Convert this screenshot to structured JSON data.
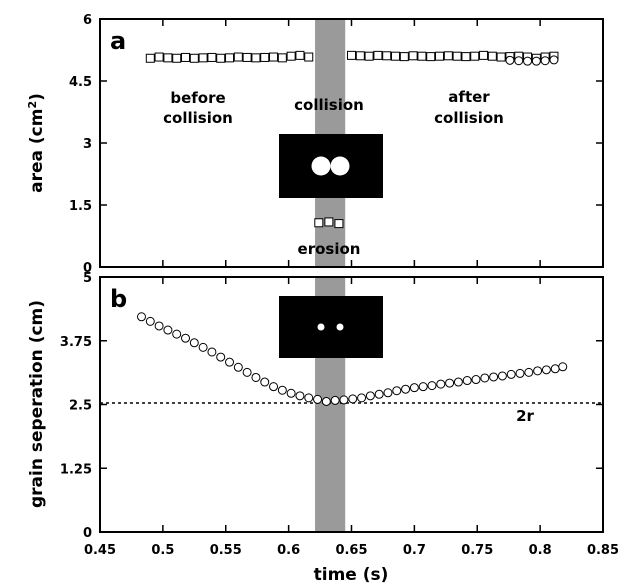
{
  "chart_data": [
    {
      "panel": "a",
      "type": "scatter",
      "ylabel_main": "area (cm",
      "ylabel_sup": "2",
      "ylabel_end": ")",
      "xlim": [
        0.45,
        0.85
      ],
      "ylim": [
        0,
        6
      ],
      "yticks": [
        "0",
        "1.5",
        "3",
        "4.5",
        "6"
      ],
      "ytick_values": [
        0,
        1.5,
        3,
        4.5,
        6
      ],
      "shaded_band": [
        0.621,
        0.645
      ],
      "annotations": {
        "before": [
          "before",
          "collision"
        ],
        "collision": "collision",
        "after": [
          "after",
          "collision"
        ],
        "erosion": "erosion"
      },
      "series": [
        {
          "marker": "square",
          "x": [
            0.49,
            0.497,
            0.504,
            0.511,
            0.518,
            0.525,
            0.532,
            0.539,
            0.546,
            0.553,
            0.56,
            0.567,
            0.574,
            0.581,
            0.588,
            0.595,
            0.602,
            0.609,
            0.616,
            0.65,
            0.657,
            0.664,
            0.671,
            0.678,
            0.685,
            0.692,
            0.699,
            0.706,
            0.713,
            0.72,
            0.727,
            0.734,
            0.741,
            0.748,
            0.755,
            0.762,
            0.769,
            0.776,
            0.783,
            0.79,
            0.797,
            0.804,
            0.811
          ],
          "y": [
            5.05,
            5.08,
            5.06,
            5.05,
            5.07,
            5.05,
            5.06,
            5.07,
            5.05,
            5.06,
            5.08,
            5.07,
            5.06,
            5.07,
            5.08,
            5.06,
            5.1,
            5.12,
            5.08,
            5.12,
            5.11,
            5.1,
            5.12,
            5.11,
            5.1,
            5.09,
            5.11,
            5.1,
            5.09,
            5.1,
            5.11,
            5.1,
            5.09,
            5.1,
            5.12,
            5.1,
            5.08,
            5.09,
            5.1,
            5.08,
            5.05,
            5.08,
            5.1
          ]
        },
        {
          "marker": "circle",
          "x": [
            0.776,
            0.783,
            0.79,
            0.797,
            0.804,
            0.811
          ],
          "y": [
            5.0,
            4.99,
            4.98,
            4.98,
            4.99,
            5.01
          ]
        },
        {
          "marker": "square",
          "x": [
            0.624,
            0.632,
            0.64
          ],
          "y": [
            1.07,
            1.09,
            1.05
          ]
        }
      ],
      "inset": "two large white disks on black, touching"
    },
    {
      "panel": "b",
      "type": "scatter",
      "ylabel": "grain seperation (cm)",
      "xlabel": "time (s)",
      "xlim": [
        0.45,
        0.85
      ],
      "ylim": [
        0,
        5
      ],
      "yticks": [
        "0",
        "1.25",
        "2.5",
        "3.75",
        "5"
      ],
      "ytick_values": [
        0,
        1.25,
        2.5,
        3.75,
        5
      ],
      "xticks": [
        "0.45",
        "0.5",
        "0.55",
        "0.6",
        "0.65",
        "0.7",
        "0.75",
        "0.8",
        "0.85"
      ],
      "xtick_values": [
        0.45,
        0.5,
        0.55,
        0.6,
        0.65,
        0.7,
        0.75,
        0.8,
        0.85
      ],
      "shaded_band": [
        0.621,
        0.645
      ],
      "reference_line": {
        "y": 2.53,
        "label": "2r"
      },
      "series": [
        {
          "marker": "circle",
          "x": [
            0.483,
            0.49,
            0.497,
            0.504,
            0.511,
            0.518,
            0.525,
            0.532,
            0.539,
            0.546,
            0.553,
            0.56,
            0.567,
            0.574,
            0.581,
            0.588,
            0.595,
            0.602,
            0.609,
            0.616,
            0.623,
            0.63,
            0.637,
            0.644,
            0.651,
            0.658,
            0.665,
            0.672,
            0.679,
            0.686,
            0.693,
            0.7,
            0.707,
            0.714,
            0.721,
            0.728,
            0.735,
            0.742,
            0.749,
            0.756,
            0.763,
            0.77,
            0.777,
            0.784,
            0.791,
            0.798,
            0.805,
            0.812,
            0.818
          ],
          "y": [
            4.22,
            4.13,
            4.04,
            3.96,
            3.88,
            3.8,
            3.71,
            3.62,
            3.53,
            3.43,
            3.33,
            3.23,
            3.13,
            3.03,
            2.94,
            2.85,
            2.78,
            2.72,
            2.67,
            2.63,
            2.6,
            2.56,
            2.58,
            2.59,
            2.61,
            2.63,
            2.67,
            2.7,
            2.73,
            2.77,
            2.8,
            2.83,
            2.85,
            2.87,
            2.9,
            2.92,
            2.94,
            2.97,
            2.99,
            3.02,
            3.04,
            3.06,
            3.09,
            3.11,
            3.13,
            3.16,
            3.18,
            3.2,
            3.24
          ]
        }
      ],
      "inset": "two small white dots on black, separated"
    }
  ]
}
